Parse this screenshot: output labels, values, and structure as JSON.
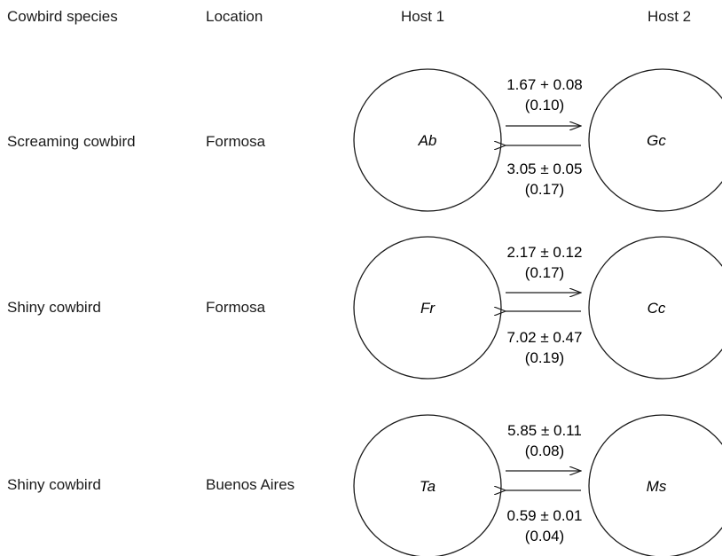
{
  "headers": {
    "species": "Cowbird species",
    "location": "Location",
    "host1": "Host 1",
    "host2": "Host 2"
  },
  "rows": [
    {
      "species": "Screaming cowbird",
      "location": "Formosa",
      "host1": "Ab",
      "host2": "Gc",
      "top_value": "1.67 + 0.08",
      "top_paren": "(0.10)",
      "bottom_value": "3.05 ± 0.05",
      "bottom_paren": "(0.17)"
    },
    {
      "species": "Shiny cowbird",
      "location": "Formosa",
      "host1": "Fr",
      "host2": "Cc",
      "top_value": "2.17 ± 0.12",
      "top_paren": "(0.17)",
      "bottom_value": "7.02 ± 0.47",
      "bottom_paren": "(0.19)"
    },
    {
      "species": "Shiny cowbird",
      "location": "Buenos Aires",
      "host1": "Ta",
      "host2": "Ms",
      "top_value": "5.85 ± 0.11",
      "top_paren": "(0.08)",
      "bottom_value": "0.59 ± 0.01",
      "bottom_paren": "(0.04)"
    }
  ]
}
